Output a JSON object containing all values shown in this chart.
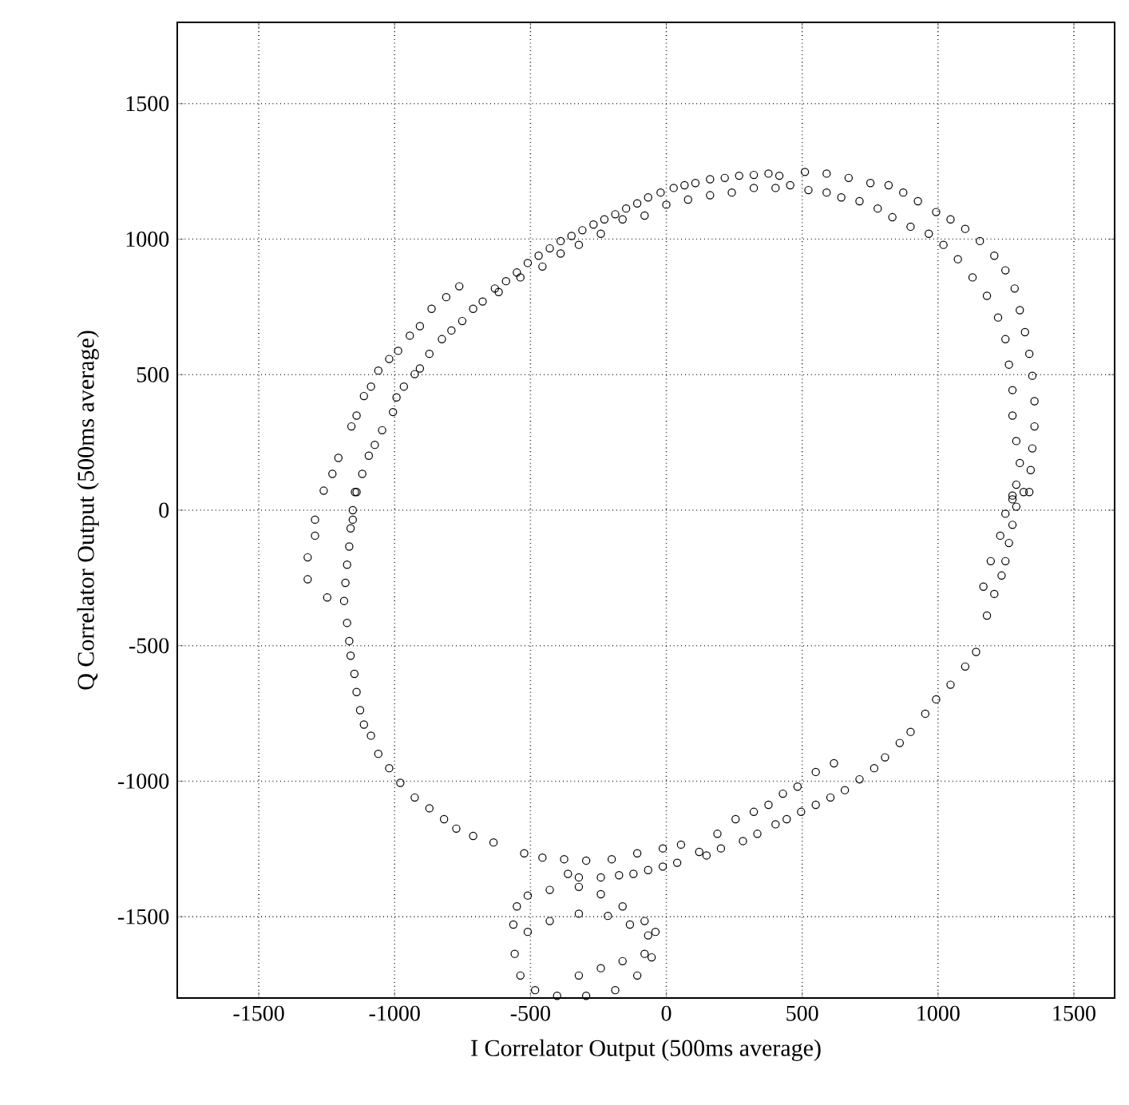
{
  "chart_data": {
    "type": "scatter",
    "xlabel": "I Correlator Output (500ms average)",
    "ylabel": "Q Correlator Output (500ms average)",
    "xlim": [
      -1800,
      1650
    ],
    "ylim": [
      -1800,
      1800
    ],
    "xticks": [
      -1500,
      -1000,
      -500,
      0,
      500,
      1000,
      1500
    ],
    "yticks": [
      -1500,
      -1000,
      -500,
      0,
      500,
      1000,
      1500
    ],
    "grid": true,
    "marker": "circle",
    "series": [
      {
        "color": "#000000",
        "x": [
          -1293,
          -1261,
          -1229,
          -1207,
          -1159,
          -1140,
          -1113,
          -1087,
          -1060,
          -1020,
          -987,
          -944,
          -907,
          -864,
          -810,
          -762,
          -1154,
          -1140,
          -1119,
          -1095,
          -1073,
          -1046,
          -1006,
          -993,
          -966,
          -926,
          -907,
          -872,
          -826,
          -791,
          -751,
          -711,
          -676,
          -631,
          -590,
          -550,
          -510,
          -470,
          -429,
          -389,
          -349,
          -309,
          -268,
          -228,
          -188,
          -148,
          -107,
          -67,
          -21,
          27,
          67,
          107,
          161,
          215,
          268,
          322,
          376,
          416,
          -617,
          -537,
          -456,
          -389,
          -322,
          -241,
          -161,
          -80,
          0,
          80,
          161,
          241,
          322,
          402,
          456,
          510,
          590,
          671,
          751,
          818,
          872,
          926,
          993,
          1046,
          1100,
          1154,
          1207,
          1248,
          1282,
          1301,
          1320,
          1336,
          1347,
          1355,
          1355,
          1347,
          1341,
          1336,
          523,
          590,
          644,
          711,
          778,
          832,
          899,
          966,
          1020,
          1073,
          1127,
          1180,
          1221,
          1248,
          1261,
          1274,
          1274,
          1288,
          1301,
          1288,
          1274,
          -1320,
          -1320,
          -1293,
          -1248,
          -1146,
          -1154,
          -1162,
          -1167,
          -1175,
          -1181,
          -1186,
          -1175,
          -1167,
          -1162,
          -1148,
          -1140,
          -1127,
          -1113,
          -1087,
          -1060,
          -1020,
          -979,
          -926,
          -872,
          -818,
          -773,
          -711,
          -636,
          -523,
          -456,
          -376,
          -295,
          -201,
          -107,
          -13,
          54,
          121,
          188,
          255,
          322,
          376,
          429,
          483,
          550,
          617,
          -362,
          -322,
          -241,
          -174,
          -121,
          -67,
          -13,
          40,
          148,
          201,
          282,
          335,
          402,
          443,
          496,
          550,
          604,
          657,
          711,
          765,
          805,
          859,
          899,
          953,
          993,
          1046,
          1100,
          1140,
          1180,
          1207,
          1234,
          1248,
          1261,
          1274,
          1288,
          1315,
          1167,
          1194,
          1229,
          1248,
          1274,
          -563,
          -550,
          -510,
          -429,
          -322,
          -241,
          -161,
          -80,
          -40,
          -54,
          -107,
          -188,
          -295,
          -402,
          -483,
          -537,
          -558,
          -510,
          -429,
          -322,
          -215,
          -134,
          -67,
          -322,
          -241,
          -161,
          -80
        ],
        "values": [
          -35,
          72,
          134,
          193,
          309,
          349,
          421,
          456,
          515,
          558,
          588,
          644,
          679,
          743,
          786,
          826,
          -35,
          67,
          134,
          201,
          241,
          295,
          362,
          416,
          456,
          502,
          523,
          577,
          631,
          663,
          698,
          743,
          770,
          818,
          845,
          877,
          912,
          939,
          966,
          993,
          1012,
          1033,
          1054,
          1073,
          1092,
          1113,
          1132,
          1154,
          1172,
          1189,
          1199,
          1207,
          1221,
          1226,
          1234,
          1237,
          1242,
          1234,
          805,
          859,
          899,
          947,
          979,
          1020,
          1073,
          1087,
          1127,
          1146,
          1162,
          1172,
          1189,
          1189,
          1199,
          1248,
          1242,
          1226,
          1207,
          1199,
          1172,
          1140,
          1100,
          1073,
          1038,
          993,
          939,
          885,
          818,
          738,
          657,
          577,
          496,
          402,
          309,
          228,
          148,
          67,
          1181,
          1172,
          1154,
          1140,
          1113,
          1081,
          1046,
          1020,
          979,
          926,
          859,
          791,
          711,
          631,
          537,
          443,
          349,
          255,
          174,
          94,
          40,
          -174,
          -255,
          -94,
          -322,
          67,
          0,
          -67,
          -134,
          -201,
          -268,
          -335,
          -416,
          -483,
          -537,
          -604,
          -671,
          -738,
          -791,
          -832,
          -899,
          -952,
          -1006,
          -1060,
          -1100,
          -1140,
          -1175,
          -1202,
          -1226,
          -1266,
          -1282,
          -1288,
          -1293,
          -1288,
          -1266,
          -1248,
          -1234,
          -1261,
          -1194,
          -1140,
          -1113,
          -1087,
          -1046,
          -1020,
          -966,
          -934,
          -1342,
          -1355,
          -1355,
          -1347,
          -1342,
          -1328,
          -1315,
          -1301,
          -1274,
          -1248,
          -1221,
          -1194,
          -1159,
          -1140,
          -1113,
          -1087,
          -1060,
          -1033,
          -993,
          -952,
          -912,
          -859,
          -818,
          -751,
          -698,
          -644,
          -577,
          -523,
          -389,
          -309,
          -241,
          -188,
          -121,
          -54,
          13,
          67,
          -282,
          -188,
          -94,
          -13,
          54,
          -1529,
          -1462,
          -1422,
          -1401,
          -1390,
          -1417,
          -1462,
          -1516,
          -1556,
          -1650,
          -1717,
          -1771,
          -1792,
          -1792,
          -1771,
          -1717,
          -1637,
          -1556,
          -1516,
          -1489,
          -1497,
          -1529,
          -1569,
          -1717,
          -1690,
          -1664,
          -1637
        ]
      }
    ]
  }
}
